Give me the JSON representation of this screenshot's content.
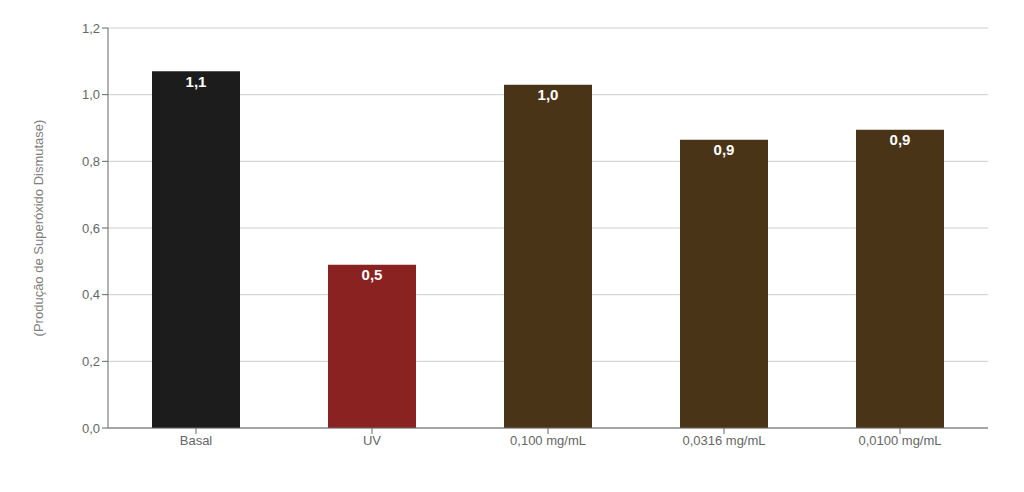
{
  "chart_data": {
    "type": "bar",
    "categories": [
      "Basal",
      "UV",
      "0,100 mg/mL",
      "0,0316 mg/mL",
      "0,0100 mg/mL"
    ],
    "values": [
      1.07,
      0.49,
      1.03,
      0.865,
      0.895
    ],
    "value_labels": [
      "1,1",
      "0,5",
      "1,0",
      "0,9",
      "0,9"
    ],
    "data_labels": true,
    "colors": [
      "#1c1c1c",
      "#8b2222",
      "#4a3418",
      "#4a3418",
      "#4a3418"
    ],
    "ylabel": "(Produção de Superóxido Dismutase)",
    "ylim": [
      0,
      1.2
    ],
    "yticks": [
      {
        "value": 0.0,
        "label": "0,0"
      },
      {
        "value": 0.2,
        "label": "0,2"
      },
      {
        "value": 0.4,
        "label": "0,4"
      },
      {
        "value": 0.6,
        "label": "0,6"
      },
      {
        "value": 0.8,
        "label": "0,8"
      },
      {
        "value": 1.0,
        "label": "1,0"
      },
      {
        "value": 1.2,
        "label": "1,2"
      }
    ],
    "grid": true
  }
}
